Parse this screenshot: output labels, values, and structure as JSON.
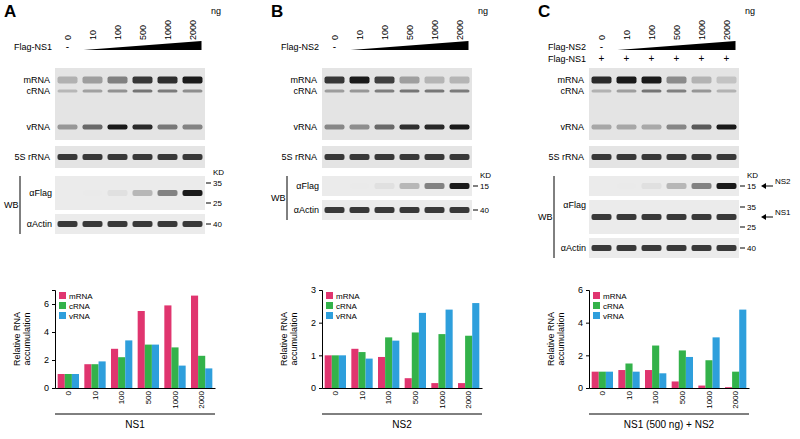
{
  "chart_data": [
    {
      "type": "bar",
      "panel": "A",
      "header": {
        "unit": "ng",
        "rows": [
          {
            "label": "Flag-NS1",
            "lanes": [
              "-",
              null,
              null,
              null,
              null,
              null
            ]
          }
        ]
      },
      "northern": {
        "bands": [
          "mRNA",
          "cRNA",
          "vRNA"
        ],
        "loading": "5S rRNA"
      },
      "western": {
        "label": "WB",
        "unit": "KD",
        "rows": [
          {
            "probe": "αFlag",
            "markers": [
              35,
              25
            ]
          },
          {
            "probe": "αActin",
            "markers": [
              40
            ]
          }
        ]
      },
      "categories": [
        "0",
        "10",
        "100",
        "500",
        "1000",
        "2000"
      ],
      "series": [
        {
          "name": "mRNA",
          "color": "#e0356f",
          "values": [
            1,
            1.7,
            2.8,
            5.5,
            5.9,
            6.6
          ]
        },
        {
          "name": "cRNA",
          "color": "#33b24a",
          "values": [
            1,
            1.7,
            2.2,
            3.1,
            2.9,
            2.3
          ]
        },
        {
          "name": "vRNA",
          "color": "#2e9fdc",
          "values": [
            1,
            1.9,
            3.4,
            3.1,
            1.6,
            1.4
          ]
        }
      ],
      "x_label": "NS1",
      "y_label": [
        "Relative RNA",
        "accumulation"
      ],
      "ylim": [
        0,
        7
      ],
      "yticks": [
        0,
        2,
        4,
        6
      ],
      "grid": false,
      "legend": "upper left"
    },
    {
      "type": "bar",
      "panel": "B",
      "header": {
        "unit": "ng",
        "rows": [
          {
            "label": "Flag-NS2",
            "lanes": [
              "-",
              null,
              null,
              null,
              null,
              null
            ]
          }
        ]
      },
      "northern": {
        "bands": [
          "mRNA",
          "cRNA",
          "vRNA"
        ],
        "loading": "5S rRNA"
      },
      "western": {
        "label": "WB",
        "unit": "KD",
        "rows": [
          {
            "probe": "αFlag",
            "markers": [
              15
            ]
          },
          {
            "probe": "αActin",
            "markers": [
              40
            ]
          }
        ]
      },
      "categories": [
        "0",
        "10",
        "100",
        "500",
        "1000",
        "2000"
      ],
      "series": [
        {
          "name": "mRNA",
          "color": "#e0356f",
          "values": [
            1,
            1.2,
            0.95,
            0.3,
            0.15,
            0.15
          ]
        },
        {
          "name": "cRNA",
          "color": "#33b24a",
          "values": [
            1,
            1.1,
            1.55,
            1.7,
            1.65,
            1.6
          ]
        },
        {
          "name": "vRNA",
          "color": "#2e9fdc",
          "values": [
            1,
            0.9,
            1.45,
            2.3,
            2.4,
            2.6
          ]
        }
      ],
      "x_label": "NS2",
      "y_label": [
        "Relative RNA",
        "accumulation"
      ],
      "ylim": [
        0,
        3
      ],
      "yticks": [
        0,
        1,
        2,
        3
      ],
      "grid": false,
      "legend": "upper left"
    },
    {
      "type": "bar",
      "panel": "C",
      "header": {
        "unit": "ng",
        "rows": [
          {
            "label": "Flag-NS2",
            "lanes": [
              "-",
              null,
              null,
              null,
              null,
              null
            ]
          },
          {
            "label": "Flag-NS1",
            "lanes": [
              "+",
              "+",
              "+",
              "+",
              "+",
              "+"
            ]
          }
        ]
      },
      "northern": {
        "bands": [
          "mRNA",
          "cRNA",
          "vRNA"
        ],
        "loading": "5S rRNA"
      },
      "western": {
        "label": "WB",
        "unit": "KD",
        "rows": [
          {
            "probe": "αFlag",
            "markers": [
              15
            ],
            "target": "NS2"
          },
          {
            "markers": [
              35,
              25
            ],
            "target": "NS1"
          },
          {
            "probe": "αActin",
            "markers": [
              40
            ]
          }
        ]
      },
      "categories": [
        "0",
        "10",
        "100",
        "500",
        "1000",
        "2000"
      ],
      "series": [
        {
          "name": "mRNA",
          "color": "#e0356f",
          "values": [
            1,
            1.1,
            1.1,
            0.4,
            0.15,
            0.05
          ]
        },
        {
          "name": "cRNA",
          "color": "#33b24a",
          "values": [
            1,
            1.5,
            2.6,
            2.3,
            1.7,
            1.0
          ]
        },
        {
          "name": "vRNA",
          "color": "#2e9fdc",
          "values": [
            1,
            1.0,
            0.9,
            1.9,
            3.1,
            4.8
          ]
        }
      ],
      "x_label": "NS1 (500 ng) + NS2",
      "y_label": [
        "Relative RNA",
        "accumulation"
      ],
      "ylim": [
        0,
        6
      ],
      "yticks": [
        0,
        2,
        4,
        6
      ],
      "grid": false,
      "legend": "upper left"
    }
  ]
}
